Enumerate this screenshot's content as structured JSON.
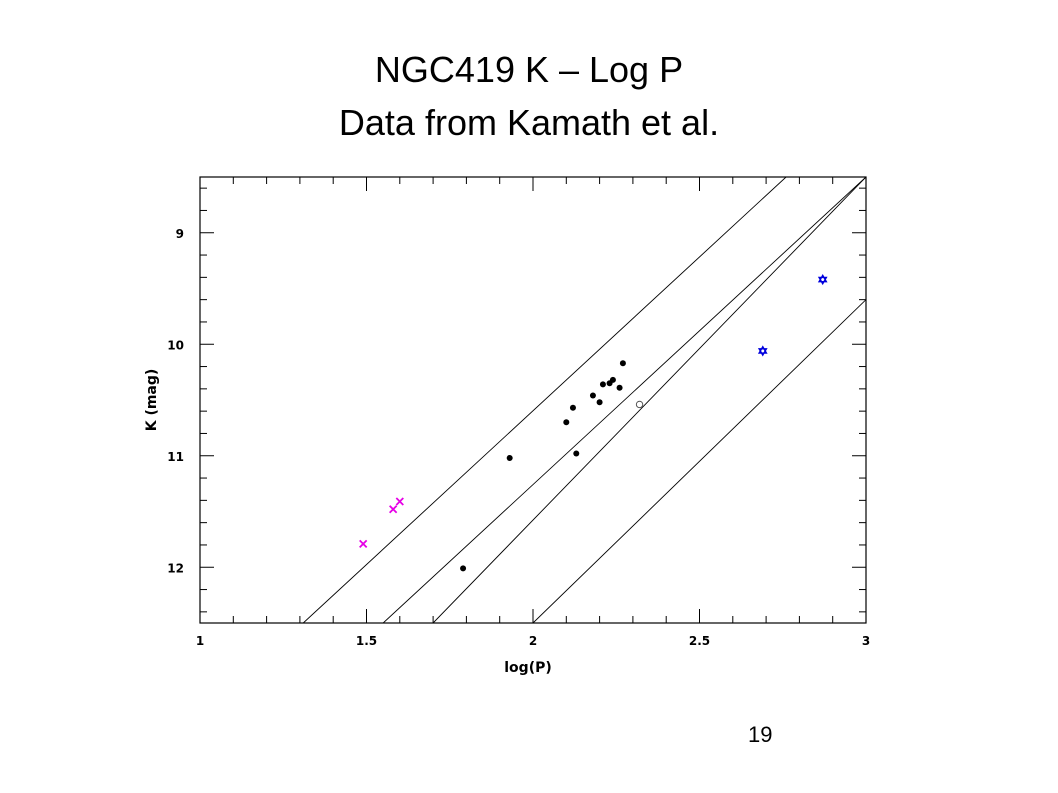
{
  "slide": {
    "title_line1": "NGC419 K – Log P",
    "title_line2": "Data from Kamath et al.",
    "page_number": "19"
  },
  "chart_data": {
    "type": "scatter",
    "xlabel": "log(P)",
    "ylabel": "K (mag)",
    "xlim": [
      1,
      3
    ],
    "ylim": [
      12.5,
      8.5
    ],
    "y_inverted": true,
    "x_ticks": [
      "1",
      "1.5",
      "2",
      "2.5",
      "3"
    ],
    "y_ticks": [
      "9",
      "10",
      "11",
      "12"
    ],
    "series": [
      {
        "marker": "cross",
        "color": "#e600e6",
        "points": [
          [
            1.49,
            11.79
          ],
          [
            1.58,
            11.48
          ],
          [
            1.6,
            11.41
          ]
        ]
      },
      {
        "marker": "filled-circle",
        "color": "#000000",
        "points": [
          [
            1.79,
            12.01
          ],
          [
            1.93,
            11.02
          ],
          [
            2.1,
            10.7
          ],
          [
            2.12,
            10.57
          ],
          [
            2.13,
            10.98
          ],
          [
            2.18,
            10.46
          ],
          [
            2.2,
            10.52
          ],
          [
            2.21,
            10.36
          ],
          [
            2.23,
            10.35
          ],
          [
            2.24,
            10.32
          ],
          [
            2.26,
            10.39
          ],
          [
            2.27,
            10.17
          ]
        ]
      },
      {
        "marker": "open-circle",
        "color": "#555555",
        "points": [
          [
            2.32,
            10.54
          ]
        ]
      },
      {
        "marker": "star",
        "color": "#0000dd",
        "points": [
          [
            2.69,
            10.06
          ],
          [
            2.87,
            9.42
          ]
        ]
      }
    ],
    "lines": [
      {
        "x": [
          1.31,
          2.76
        ],
        "y": [
          12.5,
          8.5
        ]
      },
      {
        "x": [
          1.55,
          3.0
        ],
        "y": [
          12.5,
          8.5
        ]
      },
      {
        "x": [
          1.7,
          3.0
        ],
        "y": [
          12.5,
          8.5
        ]
      },
      {
        "x": [
          2.0,
          3.0
        ],
        "y": [
          12.5,
          9.6
        ]
      }
    ],
    "grid": false
  }
}
